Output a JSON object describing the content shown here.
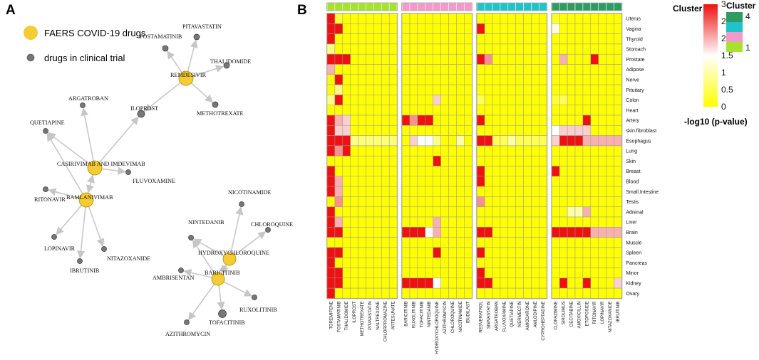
{
  "panel_a": {
    "label": "A",
    "legend": {
      "faers": "FAERS COVID-19 drugs",
      "trial": "drugs in clinical trial"
    },
    "colors": {
      "faers_node": "#f5cc33",
      "trial_node": "#777777",
      "edge": "#c8c8c8"
    },
    "nodes": [
      {
        "id": "REMDESIVIR",
        "type": "faers"
      },
      {
        "id": "CASIRIVIMAB AND IMDEVIMAB",
        "type": "faers"
      },
      {
        "id": "BAMLANIVIMAB",
        "type": "faers"
      },
      {
        "id": "HYDROXYCHLOROQUINE",
        "type": "faers"
      },
      {
        "id": "BARICITINIB",
        "type": "faers"
      },
      {
        "id": "PITAVASTATIN",
        "type": "trial"
      },
      {
        "id": "FOSTAMATINIB",
        "type": "trial"
      },
      {
        "id": "THALIDOMIDE",
        "type": "trial"
      },
      {
        "id": "METHOTREXATE",
        "type": "trial"
      },
      {
        "id": "ILOPROST",
        "type": "trial"
      },
      {
        "id": "ARGATROBAN",
        "type": "trial"
      },
      {
        "id": "QUETIAPINE",
        "type": "trial"
      },
      {
        "id": "FLUVOXAMINE",
        "type": "trial"
      },
      {
        "id": "RITONAVIR",
        "type": "trial"
      },
      {
        "id": "LOPINAVIR",
        "type": "trial"
      },
      {
        "id": "IBRUTINIB",
        "type": "trial"
      },
      {
        "id": "NITAZOXANIDE",
        "type": "trial"
      },
      {
        "id": "NICOTINAMIDE",
        "type": "trial"
      },
      {
        "id": "NINTEDANIB",
        "type": "trial"
      },
      {
        "id": "CHLOROQUINE",
        "type": "trial"
      },
      {
        "id": "AMBRISENTAN",
        "type": "trial"
      },
      {
        "id": "RUXOLITINIB",
        "type": "trial"
      },
      {
        "id": "TOFACITINIB",
        "type": "trial"
      },
      {
        "id": "AZITHROMYCIN",
        "type": "trial"
      }
    ],
    "edges": [
      [
        "REMDESIVIR",
        "PITAVASTATIN"
      ],
      [
        "REMDESIVIR",
        "FOSTAMATINIB"
      ],
      [
        "REMDESIVIR",
        "THALIDOMIDE"
      ],
      [
        "REMDESIVIR",
        "METHOTREXATE"
      ],
      [
        "REMDESIVIR",
        "ILOPROST"
      ],
      [
        "CASIRIVIMAB AND IMDEVIMAB",
        "ILOPROST"
      ],
      [
        "CASIRIVIMAB AND IMDEVIMAB",
        "ARGATROBAN"
      ],
      [
        "CASIRIVIMAB AND IMDEVIMAB",
        "QUETIAPINE"
      ],
      [
        "CASIRIVIMAB AND IMDEVIMAB",
        "FLUVOXAMINE"
      ],
      [
        "CASIRIVIMAB AND IMDEVIMAB",
        "BAMLANIVIMAB"
      ],
      [
        "BAMLANIVIMAB",
        "QUETIAPINE"
      ],
      [
        "BAMLANIVIMAB",
        "RITONAVIR"
      ],
      [
        "BAMLANIVIMAB",
        "LOPINAVIR"
      ],
      [
        "BAMLANIVIMAB",
        "IBRUTINIB"
      ],
      [
        "BAMLANIVIMAB",
        "NITAZOXANIDE"
      ],
      [
        "BAMLANIVIMAB",
        "CASIRIVIMAB AND IMDEVIMAB"
      ],
      [
        "HYDROXYCHLOROQUINE",
        "NICOTINAMIDE"
      ],
      [
        "HYDROXYCHLOROQUINE",
        "NINTEDANIB"
      ],
      [
        "HYDROXYCHLOROQUINE",
        "CHLOROQUINE"
      ],
      [
        "HYDROXYCHLOROQUINE",
        "BARICITINIB"
      ],
      [
        "BARICITINIB",
        "AMBRISENTAN"
      ],
      [
        "BARICITINIB",
        "RUXOLITINIB"
      ],
      [
        "BARICITINIB",
        "TOFACITINIB"
      ],
      [
        "BARICITINIB",
        "AZITHROMYCIN"
      ],
      [
        "BARICITINIB",
        "NINTEDANIB"
      ],
      [
        "BARICITINIB",
        "HYDROXYCHLOROQUINE"
      ]
    ]
  },
  "chart_data": {
    "type": "heatmap",
    "panel_label": "B",
    "title": "",
    "cluster_header_label": "Cluster",
    "xlabel": "",
    "ylabel": "",
    "rows": [
      "Uterus",
      "Vagina",
      "Thyroid",
      "Stomach",
      "Prostate",
      "Adipose",
      "Nerve",
      "Pituitary",
      "Colon",
      "Heart",
      "Artery",
      "skin.fibroblast",
      "Esophagus",
      "Lung",
      "Skin",
      "Breast",
      "Blood",
      "Small.Intestine",
      "Testis",
      "Adrenal",
      "Liver",
      "Brain",
      "Muscle",
      "Spleen",
      "Pancreas",
      "Minor",
      "Kidney",
      "Ovary"
    ],
    "columns": [
      "TOREMIFENE",
      "FOSTAMATINIB",
      "THALIDOMIDE",
      "ILOPROST",
      "METHOTREXATE",
      "PITAVASTATIN",
      "NALTREXONE",
      "CHLORPROMAZINE",
      "ARTESUNATE",
      "BARICITINIB",
      "RUXOLITINIB",
      "TOFACITINIB",
      "NINTEDANIB",
      "HYDROXYCHLOROQUINE",
      "AZITHROMYCIN",
      "CHLOROQUINE",
      "NICOTINAMIDE",
      "IBUDILAST",
      "RESVERATROL",
      "SIMVASTATIN",
      "ARGATROBAN",
      "FLUVOXAMINE",
      "QUETIAPINE",
      "IVERMECTIN",
      "AMIODARONE",
      "AMLODIPINE",
      "CYPROHEPTADINE",
      "CLOFAZIMINE",
      "SIROLIMUS",
      "DECITABINE",
      "AMOXICILLIN",
      "ETOPOSIDE",
      "RITONAVIR",
      "LOPINAVIR",
      "NITAZOXANIDE",
      "IBRUTINIB"
    ],
    "column_clusters": [
      1,
      1,
      1,
      1,
      1,
      1,
      1,
      1,
      1,
      2,
      2,
      2,
      2,
      2,
      2,
      2,
      2,
      2,
      3,
      3,
      3,
      3,
      3,
      3,
      3,
      3,
      3,
      4,
      4,
      4,
      4,
      4,
      4,
      4,
      4,
      4
    ],
    "cluster_colors": {
      "1": "#a6e22e",
      "2": "#f29ac9",
      "3": "#1fc3c8",
      "4": "#2e9b63"
    },
    "values_note": "-log10(p-value), clipped to 3",
    "values": [
      [
        3,
        0.3,
        0,
        0,
        0,
        0,
        0,
        0,
        0,
        0,
        0,
        0,
        0,
        0,
        0,
        0,
        0,
        0,
        0,
        0,
        0,
        0,
        0,
        0,
        0,
        0,
        0,
        0.2,
        0,
        0,
        0,
        0,
        0,
        0,
        0,
        0
      ],
      [
        3,
        3,
        0,
        0,
        0,
        0,
        0,
        0,
        0,
        0,
        0,
        0,
        0,
        0,
        0,
        0,
        0,
        0,
        3,
        0,
        0,
        0,
        0,
        0,
        0,
        0,
        0,
        1.3,
        0,
        0,
        0,
        0,
        0,
        0,
        0,
        0
      ],
      [
        3,
        0,
        0,
        0,
        0,
        0,
        0,
        0,
        0,
        0,
        0,
        0,
        0,
        0,
        0,
        0,
        0,
        0,
        0,
        0,
        0,
        0,
        0,
        0,
        0,
        0,
        0,
        0,
        0,
        0,
        0,
        0,
        0,
        0,
        0,
        0
      ],
      [
        0.8,
        0,
        0,
        0,
        0,
        0,
        0,
        0,
        0,
        0,
        0,
        0,
        0,
        0,
        0,
        0,
        0,
        0,
        0,
        0,
        0,
        0,
        0,
        0,
        0,
        0,
        0,
        0,
        0,
        0,
        0,
        0,
        0,
        0,
        0,
        0
      ],
      [
        3,
        3,
        3,
        0,
        0,
        0,
        0,
        0,
        0,
        0,
        0,
        0,
        0,
        0,
        0,
        0,
        0,
        0,
        3,
        2.2,
        0,
        0,
        0,
        0,
        0,
        0,
        0,
        0,
        2,
        0,
        0,
        0,
        3,
        0,
        0,
        0
      ],
      [
        2,
        0,
        0,
        0,
        0,
        0,
        0,
        0,
        0,
        0,
        0,
        0,
        0,
        0,
        0,
        0,
        0,
        0,
        0,
        0,
        0,
        0,
        0,
        0,
        0,
        0,
        0,
        0,
        0,
        0,
        0,
        0,
        0,
        0,
        0,
        0
      ],
      [
        0,
        3,
        0,
        0,
        0,
        0,
        0,
        0,
        0,
        0,
        0,
        0,
        0,
        0,
        0,
        0,
        0,
        0,
        0,
        0,
        0,
        0,
        0,
        0,
        0,
        0,
        0,
        0,
        0,
        0,
        0,
        0,
        0,
        0,
        0,
        0
      ],
      [
        0,
        0.8,
        0,
        0,
        0,
        0,
        0,
        0,
        0,
        0,
        0,
        0,
        0,
        0,
        0,
        0,
        0,
        0,
        0,
        0,
        0,
        0,
        0,
        0,
        0,
        0,
        0,
        0,
        0,
        0,
        0,
        0,
        0,
        0,
        0,
        0
      ],
      [
        0.8,
        3,
        0,
        0,
        0,
        0,
        0,
        0,
        0,
        0,
        0,
        0,
        0,
        1.8,
        0,
        0,
        0,
        0,
        0.5,
        0,
        0,
        0,
        0,
        0,
        0,
        0,
        0,
        0.3,
        0.5,
        0,
        0,
        0,
        0,
        0,
        0,
        0
      ],
      [
        0,
        0,
        0,
        0,
        0,
        0,
        0,
        0,
        0,
        0,
        0,
        0,
        0,
        0,
        0,
        0,
        0,
        0,
        0,
        0,
        0,
        0,
        0,
        0,
        0,
        0,
        0,
        0,
        0,
        0,
        0,
        0,
        0,
        0,
        0,
        0
      ],
      [
        3,
        2,
        1.8,
        0,
        0,
        0,
        0,
        0,
        0,
        3,
        2.2,
        3,
        3,
        0,
        0,
        0,
        0,
        0,
        3,
        0,
        0,
        0,
        0,
        0,
        0,
        0,
        0,
        0,
        0,
        0,
        0,
        3,
        0,
        0,
        0,
        0
      ],
      [
        3,
        1.8,
        1.8,
        0,
        0,
        0,
        0,
        0,
        0,
        0,
        0,
        0,
        0,
        0,
        0,
        0,
        0,
        0,
        0,
        0,
        0,
        0,
        0,
        0,
        0,
        0,
        0,
        1.5,
        1.8,
        1.8,
        1.8,
        1.8,
        0,
        0,
        0,
        0
      ],
      [
        3,
        3,
        3,
        0.8,
        0.7,
        0.7,
        0.7,
        0.7,
        0.7,
        0,
        1.8,
        1.5,
        1.5,
        0.8,
        0,
        0,
        1,
        0,
        3,
        3,
        0.5,
        0.5,
        1,
        0.5,
        0.5,
        0.5,
        0.5,
        1.8,
        3,
        3,
        3,
        2,
        2,
        2,
        2,
        2
      ],
      [
        3,
        2.2,
        3,
        0,
        0,
        0,
        0,
        0,
        0,
        0,
        0,
        0,
        0,
        0,
        0,
        0,
        0,
        0,
        0,
        0,
        0,
        0,
        0,
        0,
        0,
        0,
        0,
        0,
        0,
        0,
        0,
        0,
        0,
        0,
        0,
        0
      ],
      [
        0,
        0,
        0,
        0,
        0,
        0,
        0,
        0,
        0,
        0,
        0,
        0,
        0,
        3,
        0,
        0,
        0,
        0,
        0,
        0,
        0,
        0,
        0,
        0,
        0,
        0,
        0,
        0,
        0,
        0,
        0,
        0,
        0,
        0,
        0,
        0
      ],
      [
        3,
        0,
        0,
        0,
        0,
        0,
        0,
        0,
        0,
        0,
        0,
        0,
        0,
        0,
        0,
        0,
        0,
        0,
        3,
        0,
        0,
        0,
        0,
        0,
        0,
        0,
        0,
        3,
        0,
        0,
        0,
        0,
        0,
        0,
        0,
        0
      ],
      [
        3,
        2,
        0,
        0,
        0,
        0,
        0,
        0,
        0,
        0,
        0,
        0,
        0,
        0,
        0,
        0,
        0,
        0,
        3,
        0,
        0,
        0,
        0,
        0,
        0,
        0,
        0,
        0,
        0,
        0,
        0,
        0,
        0,
        0,
        0,
        0
      ],
      [
        3,
        2,
        0,
        0,
        0,
        0,
        0,
        0,
        0,
        0,
        0,
        0,
        0,
        0,
        0,
        0,
        0,
        0,
        0,
        0,
        0,
        0,
        0,
        0,
        0,
        0,
        0,
        0,
        0,
        0,
        0,
        0,
        0,
        0,
        0,
        0
      ],
      [
        0,
        2.2,
        0,
        0,
        0,
        0,
        0,
        0,
        0,
        0,
        0,
        0,
        0,
        0,
        0,
        0,
        0,
        0,
        2.2,
        0,
        0,
        0,
        0,
        0,
        0,
        0,
        0,
        0,
        0,
        0,
        0,
        0,
        0,
        0,
        0,
        0
      ],
      [
        3,
        0,
        0,
        0,
        0,
        0,
        0,
        0,
        0,
        0,
        0,
        0,
        0,
        0,
        0,
        0,
        0,
        0,
        0,
        0,
        0,
        0,
        0,
        0,
        0,
        0,
        0,
        0,
        0,
        1,
        1,
        2,
        0,
        0,
        0,
        0
      ],
      [
        3,
        2,
        0,
        0,
        0,
        0,
        0,
        0,
        0,
        0,
        0,
        0,
        0,
        2,
        0,
        0,
        0,
        0,
        0,
        0,
        0,
        0,
        0,
        0,
        0,
        0,
        0,
        0,
        0,
        0,
        0,
        0,
        0,
        0,
        0,
        0
      ],
      [
        3,
        3,
        0,
        0,
        0,
        0,
        0,
        0,
        0,
        3,
        3,
        3,
        1.5,
        2,
        0,
        0,
        0,
        0,
        3,
        3,
        0,
        0,
        0,
        0,
        0,
        0,
        0,
        3,
        3,
        3,
        3,
        3,
        2,
        2,
        2,
        2
      ],
      [
        0,
        0,
        0,
        0,
        0,
        0,
        0,
        0,
        0,
        0,
        0,
        0,
        0,
        0,
        0,
        0,
        0,
        0,
        0,
        0,
        0,
        0,
        0,
        0,
        0,
        0,
        0,
        0,
        0,
        0,
        0,
        0,
        0,
        0,
        0,
        0
      ],
      [
        3,
        3,
        0,
        0,
        0,
        0,
        0,
        0,
        0,
        0,
        0,
        0,
        0,
        3,
        0,
        0,
        0,
        0,
        3,
        0,
        0,
        0,
        0,
        0,
        0,
        0,
        0,
        0,
        0,
        0,
        0,
        0,
        0,
        0,
        0,
        0
      ],
      [
        3,
        0,
        0,
        0,
        0,
        0,
        0,
        0,
        0,
        0,
        0,
        0,
        0,
        0,
        0,
        0,
        0,
        0,
        0,
        0,
        0,
        0,
        0,
        0,
        0,
        0,
        0,
        0,
        0,
        0,
        0,
        0,
        0,
        0,
        0,
        0
      ],
      [
        3,
        3,
        0,
        0,
        0,
        0,
        0,
        0,
        0,
        0,
        0,
        0,
        0,
        0,
        0,
        0,
        0,
        0,
        3,
        0,
        0,
        0,
        0,
        0,
        0,
        0,
        0,
        0,
        0,
        0,
        0,
        0,
        0,
        0,
        0,
        0
      ],
      [
        3,
        3,
        0,
        0,
        0,
        0,
        0,
        0,
        0,
        3,
        3,
        3,
        3,
        1.5,
        0,
        0,
        0,
        0,
        3,
        3,
        0,
        0,
        0,
        0,
        0,
        0,
        0,
        0,
        3,
        0,
        0,
        3,
        0,
        0,
        0,
        1.8
      ],
      [
        3,
        0,
        0,
        0,
        0,
        0,
        0,
        0,
        0,
        0,
        0,
        0,
        0,
        0,
        0,
        0,
        0,
        0,
        0,
        0,
        0,
        0,
        0,
        0,
        0,
        0,
        0,
        0,
        0,
        0,
        0,
        0,
        0,
        0,
        0,
        0
      ]
    ],
    "colorbar": {
      "ticks": [
        "3",
        "2.5",
        "2",
        "1.5",
        "1",
        "0.5",
        "0"
      ],
      "min": 0,
      "max": 3,
      "label": "-log10 (p-value)",
      "colors": {
        "low": "#ffff00",
        "mid": "#ffffff",
        "high": "#ee1111"
      }
    },
    "cluster_legend": {
      "title": "Cluster",
      "labels": [
        "4",
        "1"
      ]
    }
  }
}
